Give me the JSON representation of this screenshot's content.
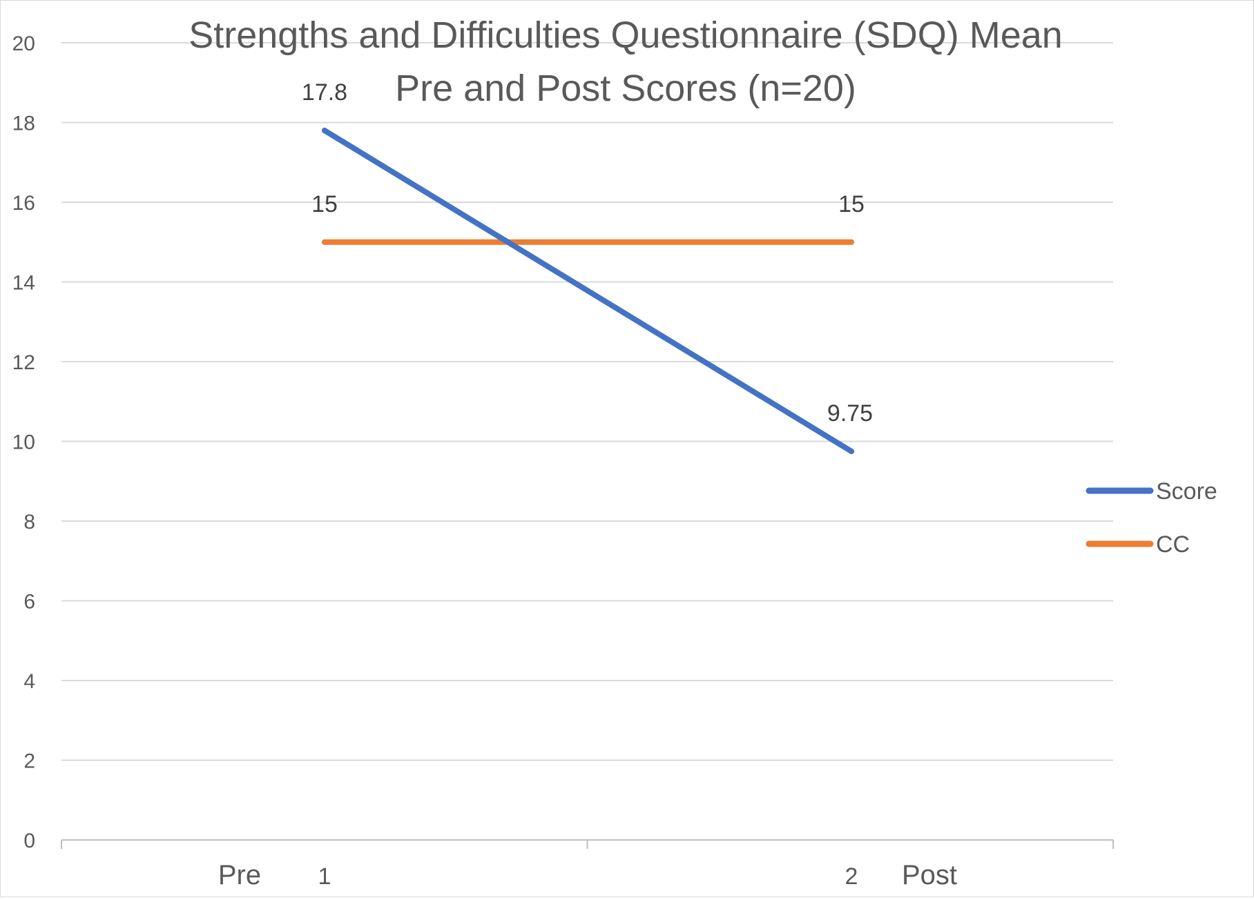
{
  "chart_data": {
    "type": "line",
    "title_lines": [
      "Strengths and Difficulties Questionnaire (SDQ) Mean",
      "Pre and Post Scores (n=20)"
    ],
    "categories": [
      "1",
      "2"
    ],
    "x_annotations": [
      "Pre",
      "Post"
    ],
    "y_ticks": [
      "0",
      "2",
      "4",
      "6",
      "8",
      "10",
      "12",
      "14",
      "16",
      "18",
      "20"
    ],
    "ylim": [
      0,
      20
    ],
    "grid": true,
    "legend_position": "right",
    "series": [
      {
        "name": "Score",
        "values": [
          17.8,
          9.75
        ],
        "labels": [
          "17.8",
          "9.75"
        ],
        "color": "#4472c4"
      },
      {
        "name": "CC",
        "values": [
          15,
          15
        ],
        "labels": [
          "15",
          "15"
        ],
        "color": "#ed7d31"
      }
    ]
  }
}
